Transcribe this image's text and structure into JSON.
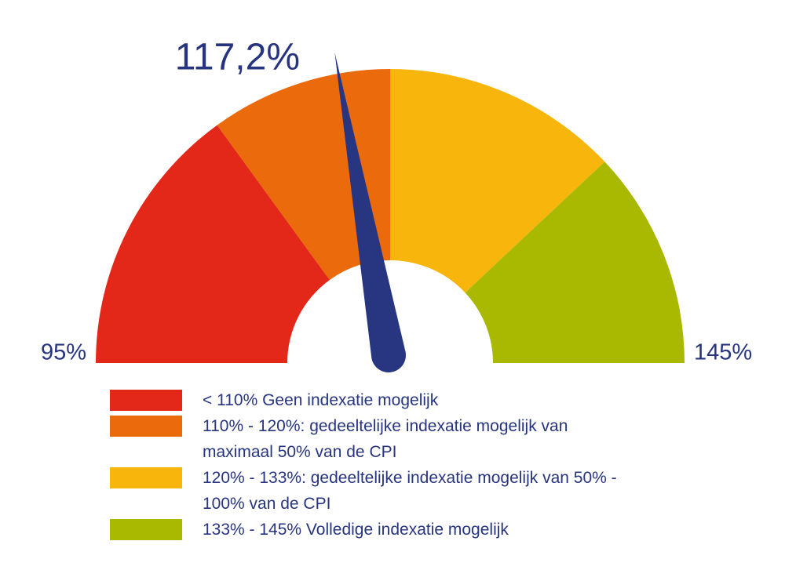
{
  "chart_data": {
    "type": "gauge",
    "range": [
      95,
      145
    ],
    "ticks": [
      {
        "value": 95,
        "label": "95%"
      },
      {
        "value": 145,
        "label": "145%"
      }
    ],
    "value": 117.2,
    "value_label": "117,2%",
    "needle_color": "#283580",
    "bands": [
      {
        "from": 95,
        "to": 110,
        "color": "#e3281a",
        "label": "< 110% Geen indexatie mogelijk"
      },
      {
        "from": 110,
        "to": 120,
        "color": "#eb6a0c",
        "label": "110% - 120%: gedeeltelijke indexatie mogelijk van maximaal 50% van de CPI"
      },
      {
        "from": 120,
        "to": 133,
        "color": "#f8b60d",
        "label": "120% - 133%: gedeeltelijke indexatie mogelijk van 50% - 100% van de CPI"
      },
      {
        "from": 133,
        "to": 145,
        "color": "#a9b800",
        "label": "133% - 145% Volledige indexatie mogelijk"
      }
    ]
  }
}
